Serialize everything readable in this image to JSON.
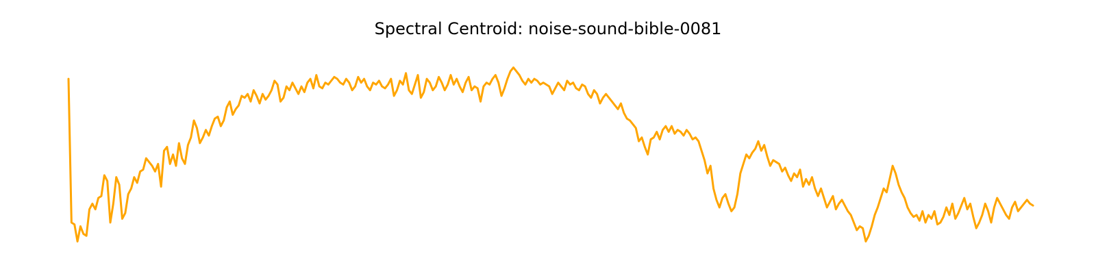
{
  "chart_data": {
    "type": "line",
    "title": "Spectral Centroid: noise-sound-bible-0081",
    "xlabel": "",
    "ylabel": "",
    "axes_visible": false,
    "grid": false,
    "colors": {
      "line": "#FFA500"
    },
    "series": [
      {
        "values": [
          0.88,
          0.12,
          0.11,
          0.02,
          0.1,
          0.06,
          0.05,
          0.19,
          0.22,
          0.19,
          0.25,
          0.26,
          0.37,
          0.34,
          0.12,
          0.22,
          0.36,
          0.32,
          0.14,
          0.17,
          0.27,
          0.3,
          0.36,
          0.33,
          0.39,
          0.4,
          0.46,
          0.44,
          0.42,
          0.39,
          0.43,
          0.31,
          0.5,
          0.52,
          0.43,
          0.48,
          0.42,
          0.54,
          0.46,
          0.43,
          0.53,
          0.57,
          0.66,
          0.62,
          0.54,
          0.57,
          0.61,
          0.58,
          0.63,
          0.67,
          0.68,
          0.63,
          0.66,
          0.73,
          0.76,
          0.69,
          0.72,
          0.74,
          0.79,
          0.78,
          0.8,
          0.76,
          0.82,
          0.79,
          0.75,
          0.8,
          0.77,
          0.79,
          0.82,
          0.87,
          0.85,
          0.76,
          0.78,
          0.84,
          0.82,
          0.86,
          0.83,
          0.8,
          0.84,
          0.81,
          0.86,
          0.88,
          0.83,
          0.9,
          0.84,
          0.83,
          0.86,
          0.85,
          0.87,
          0.89,
          0.88,
          0.86,
          0.85,
          0.88,
          0.86,
          0.82,
          0.84,
          0.89,
          0.86,
          0.88,
          0.84,
          0.82,
          0.86,
          0.85,
          0.87,
          0.84,
          0.83,
          0.85,
          0.88,
          0.79,
          0.82,
          0.87,
          0.85,
          0.91,
          0.82,
          0.8,
          0.85,
          0.9,
          0.78,
          0.81,
          0.88,
          0.86,
          0.82,
          0.84,
          0.89,
          0.86,
          0.82,
          0.85,
          0.9,
          0.85,
          0.88,
          0.84,
          0.81,
          0.86,
          0.89,
          0.82,
          0.84,
          0.83,
          0.76,
          0.84,
          0.86,
          0.85,
          0.88,
          0.9,
          0.86,
          0.79,
          0.83,
          0.88,
          0.92,
          0.94,
          0.92,
          0.9,
          0.87,
          0.85,
          0.88,
          0.86,
          0.88,
          0.87,
          0.85,
          0.86,
          0.85,
          0.84,
          0.8,
          0.83,
          0.86,
          0.84,
          0.82,
          0.87,
          0.85,
          0.86,
          0.83,
          0.82,
          0.85,
          0.84,
          0.8,
          0.78,
          0.82,
          0.8,
          0.75,
          0.78,
          0.8,
          0.78,
          0.76,
          0.74,
          0.72,
          0.75,
          0.7,
          0.67,
          0.66,
          0.64,
          0.62,
          0.55,
          0.57,
          0.52,
          0.48,
          0.56,
          0.57,
          0.6,
          0.56,
          0.61,
          0.63,
          0.6,
          0.63,
          0.59,
          0.61,
          0.6,
          0.58,
          0.61,
          0.59,
          0.56,
          0.57,
          0.55,
          0.5,
          0.45,
          0.38,
          0.42,
          0.3,
          0.24,
          0.2,
          0.25,
          0.27,
          0.22,
          0.18,
          0.2,
          0.27,
          0.38,
          0.43,
          0.48,
          0.46,
          0.49,
          0.51,
          0.55,
          0.5,
          0.53,
          0.47,
          0.42,
          0.45,
          0.44,
          0.43,
          0.39,
          0.41,
          0.37,
          0.34,
          0.38,
          0.36,
          0.4,
          0.31,
          0.35,
          0.32,
          0.36,
          0.3,
          0.26,
          0.3,
          0.25,
          0.2,
          0.23,
          0.26,
          0.19,
          0.22,
          0.24,
          0.21,
          0.18,
          0.16,
          0.12,
          0.08,
          0.1,
          0.09,
          0.02,
          0.05,
          0.1,
          0.16,
          0.2,
          0.25,
          0.3,
          0.28,
          0.35,
          0.42,
          0.38,
          0.32,
          0.28,
          0.25,
          0.2,
          0.17,
          0.15,
          0.16,
          0.13,
          0.18,
          0.12,
          0.16,
          0.14,
          0.18,
          0.11,
          0.12,
          0.15,
          0.2,
          0.16,
          0.22,
          0.14,
          0.17,
          0.21,
          0.25,
          0.19,
          0.22,
          0.15,
          0.09,
          0.12,
          0.16,
          0.22,
          0.18,
          0.12,
          0.2,
          0.25,
          0.22,
          0.19,
          0.16,
          0.14,
          0.2,
          0.23,
          0.18,
          0.2,
          0.22,
          0.24,
          0.22,
          0.21
        ],
        "color": "#FFA500"
      }
    ]
  }
}
